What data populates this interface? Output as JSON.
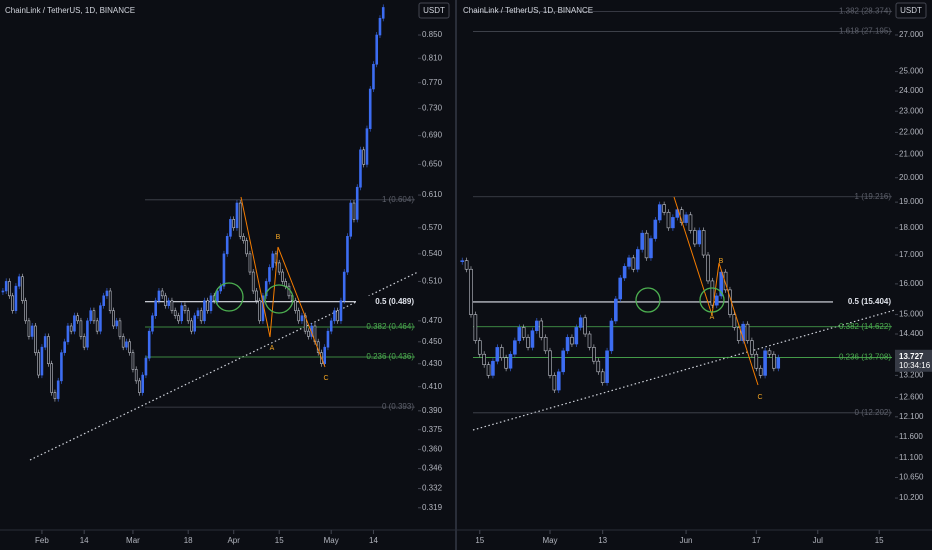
{
  "chart_data": [
    {
      "type": "candlestick",
      "title": "ChainLink / TetherUS, 1D, BINANCE",
      "currency": "USDT",
      "log": true,
      "up_color": "#3d6df2",
      "down_color": "#c0c3cc",
      "closes": [
        0.5,
        0.51,
        0.495,
        0.48,
        0.505,
        0.515,
        0.49,
        0.47,
        0.455,
        0.465,
        0.44,
        0.42,
        0.445,
        0.455,
        0.43,
        0.405,
        0.4,
        0.415,
        0.44,
        0.45,
        0.465,
        0.46,
        0.475,
        0.47,
        0.455,
        0.445,
        0.47,
        0.48,
        0.47,
        0.46,
        0.485,
        0.495,
        0.5,
        0.48,
        0.465,
        0.47,
        0.455,
        0.445,
        0.45,
        0.44,
        0.425,
        0.415,
        0.405,
        0.42,
        0.435,
        0.46,
        0.475,
        0.49,
        0.5,
        0.495,
        0.485,
        0.49,
        0.48,
        0.475,
        0.47,
        0.485,
        0.48,
        0.47,
        0.46,
        0.475,
        0.48,
        0.47,
        0.49,
        0.48,
        0.495,
        0.49,
        0.5,
        0.505,
        0.54,
        0.56,
        0.58,
        0.57,
        0.6,
        0.56,
        0.555,
        0.54,
        0.52,
        0.5,
        0.49,
        0.47,
        0.495,
        0.51,
        0.525,
        0.54,
        0.53,
        0.52,
        0.51,
        0.505,
        0.495,
        0.49,
        0.48,
        0.47,
        0.475,
        0.46,
        0.455,
        0.465,
        0.45,
        0.44,
        0.43,
        0.445,
        0.46,
        0.47,
        0.48,
        0.47,
        0.49,
        0.52,
        0.56,
        0.6,
        0.58,
        0.62,
        0.67,
        0.65,
        0.7,
        0.76,
        0.8,
        0.85,
        0.88,
        0.9
      ],
      "xlim": [
        -0.9,
        127.7
      ],
      "xticks": [
        {
          "value": 12,
          "label": "Feb"
        },
        {
          "value": 25,
          "label": "14"
        },
        {
          "value": 40,
          "label": "Mar"
        },
        {
          "value": 57,
          "label": "18"
        },
        {
          "value": 71,
          "label": "Apr"
        },
        {
          "value": 85,
          "label": "15"
        },
        {
          "value": 101,
          "label": "May"
        },
        {
          "value": 114,
          "label": "14"
        }
      ],
      "ylim": [
        0.311,
        0.914
      ],
      "yticks": [
        {
          "value": 0.85,
          "label": "0.850"
        },
        {
          "value": 0.81,
          "label": "0.810"
        },
        {
          "value": 0.77,
          "label": "0.770"
        },
        {
          "value": 0.73,
          "label": "0.730"
        },
        {
          "value": 0.69,
          "label": "0.690"
        },
        {
          "value": 0.65,
          "label": "0.650"
        },
        {
          "value": 0.61,
          "label": "0.610"
        },
        {
          "value": 0.57,
          "label": "0.570"
        },
        {
          "value": 0.54,
          "label": "0.540"
        },
        {
          "value": 0.51,
          "label": "0.510"
        },
        {
          "value": 0.47,
          "label": "0.470"
        },
        {
          "value": 0.45,
          "label": "0.450"
        },
        {
          "value": 0.43,
          "label": "0.430"
        },
        {
          "value": 0.41,
          "label": "0.410"
        },
        {
          "value": 0.39,
          "label": "0.390"
        },
        {
          "value": 0.375,
          "label": "0.375"
        },
        {
          "value": 0.36,
          "label": "0.360"
        },
        {
          "value": 0.346,
          "label": "0.346"
        },
        {
          "value": 0.332,
          "label": "0.332"
        },
        {
          "value": 0.319,
          "label": "0.319"
        }
      ],
      "fib": [
        {
          "label": "1 (0.604)",
          "price": 0.604,
          "color": "#5d606b"
        },
        {
          "label": "0.5 (0.489)",
          "price": 0.489,
          "color": "#e0e3eb"
        },
        {
          "label": "0.382 (0.464)",
          "price": 0.464,
          "color": "#4caf50"
        },
        {
          "label": "0.236 (0.436)",
          "price": 0.436,
          "color": "#4caf50"
        },
        {
          "label": "0 (0.393)",
          "price": 0.393,
          "color": "#5d606b"
        }
      ],
      "wave_labels": [
        "A",
        "B",
        "C"
      ]
    },
    {
      "type": "candlestick",
      "title": "ChainLink / TetherUS, 1D, BINANCE",
      "currency": "USDT",
      "log": true,
      "up_color": "#3d6df2",
      "down_color": "#c0c3cc",
      "closes": [
        16.8,
        16.5,
        15.0,
        14.2,
        13.8,
        13.5,
        13.2,
        13.6,
        14.0,
        13.7,
        13.4,
        13.8,
        14.2,
        14.6,
        14.3,
        14.0,
        14.5,
        14.8,
        14.3,
        13.9,
        13.2,
        12.8,
        13.3,
        13.9,
        14.3,
        14.1,
        14.6,
        14.9,
        14.4,
        14.0,
        13.6,
        13.3,
        13.0,
        13.9,
        14.8,
        15.5,
        16.2,
        16.6,
        16.9,
        16.5,
        17.2,
        17.8,
        16.9,
        17.6,
        18.3,
        18.9,
        18.6,
        18.0,
        18.4,
        18.7,
        18.2,
        18.5,
        17.9,
        17.4,
        17.9,
        17.0,
        16.1,
        15.3,
        15.6,
        16.4,
        15.8,
        15.0,
        14.6,
        14.2,
        14.7,
        14.2,
        13.8,
        13.4,
        13.2,
        13.9,
        13.8,
        13.4,
        13.7
      ],
      "xlim": [
        -0.96,
        98.6
      ],
      "xticks": [
        {
          "value": 4,
          "label": "15"
        },
        {
          "value": 20,
          "label": "May"
        },
        {
          "value": 32,
          "label": "13"
        },
        {
          "value": 51,
          "label": "Jun"
        },
        {
          "value": 67,
          "label": "17"
        },
        {
          "value": 81,
          "label": "Jul"
        },
        {
          "value": 95,
          "label": "15"
        }
      ],
      "ylim": [
        9.74,
        29.06
      ],
      "yticks": [
        {
          "value": 27,
          "label": "27.000"
        },
        {
          "value": 25,
          "label": "25.000"
        },
        {
          "value": 24,
          "label": "24.000"
        },
        {
          "value": 23,
          "label": "23.000"
        },
        {
          "value": 22,
          "label": "22.000"
        },
        {
          "value": 21,
          "label": "21.000"
        },
        {
          "value": 20,
          "label": "20.000"
        },
        {
          "value": 19,
          "label": "19.000"
        },
        {
          "value": 18,
          "label": "18.000"
        },
        {
          "value": 17,
          "label": "17.000"
        },
        {
          "value": 16,
          "label": "16.000"
        },
        {
          "value": 15,
          "label": "15.000"
        },
        {
          "value": 14.4,
          "label": "14.400"
        },
        {
          "value": 13.2,
          "label": "13.200"
        },
        {
          "value": 12.6,
          "label": "12.600"
        },
        {
          "value": 12.1,
          "label": "12.100"
        },
        {
          "value": 11.6,
          "label": "11.600"
        },
        {
          "value": 11.1,
          "label": "11.100"
        },
        {
          "value": 10.65,
          "label": "10.650"
        },
        {
          "value": 10.2,
          "label": "10.200"
        }
      ],
      "fib": [
        {
          "label": "1.382 (28.374)",
          "price": 28.374,
          "color": "#5d606b"
        },
        {
          "label": "1.618 (27.195)",
          "price": 27.195,
          "color": "#5d606b"
        },
        {
          "label": "1 (19.216)",
          "price": 19.216,
          "color": "#5d606b"
        },
        {
          "label": "0.5 (15.404)",
          "price": 15.404,
          "color": "#e0e3eb"
        },
        {
          "label": "0.382 (14.622)",
          "price": 14.622,
          "color": "#4caf50"
        },
        {
          "label": "0.236 (13.708)",
          "price": 13.708,
          "color": "#4caf50"
        },
        {
          "label": "0 (12.202)",
          "price": 12.202,
          "color": "#5d606b"
        }
      ],
      "wave_labels": [
        "A",
        "B",
        "C"
      ],
      "current_price": {
        "value": 13.727,
        "label": "13.727",
        "countdown": "10:34:16"
      }
    }
  ]
}
